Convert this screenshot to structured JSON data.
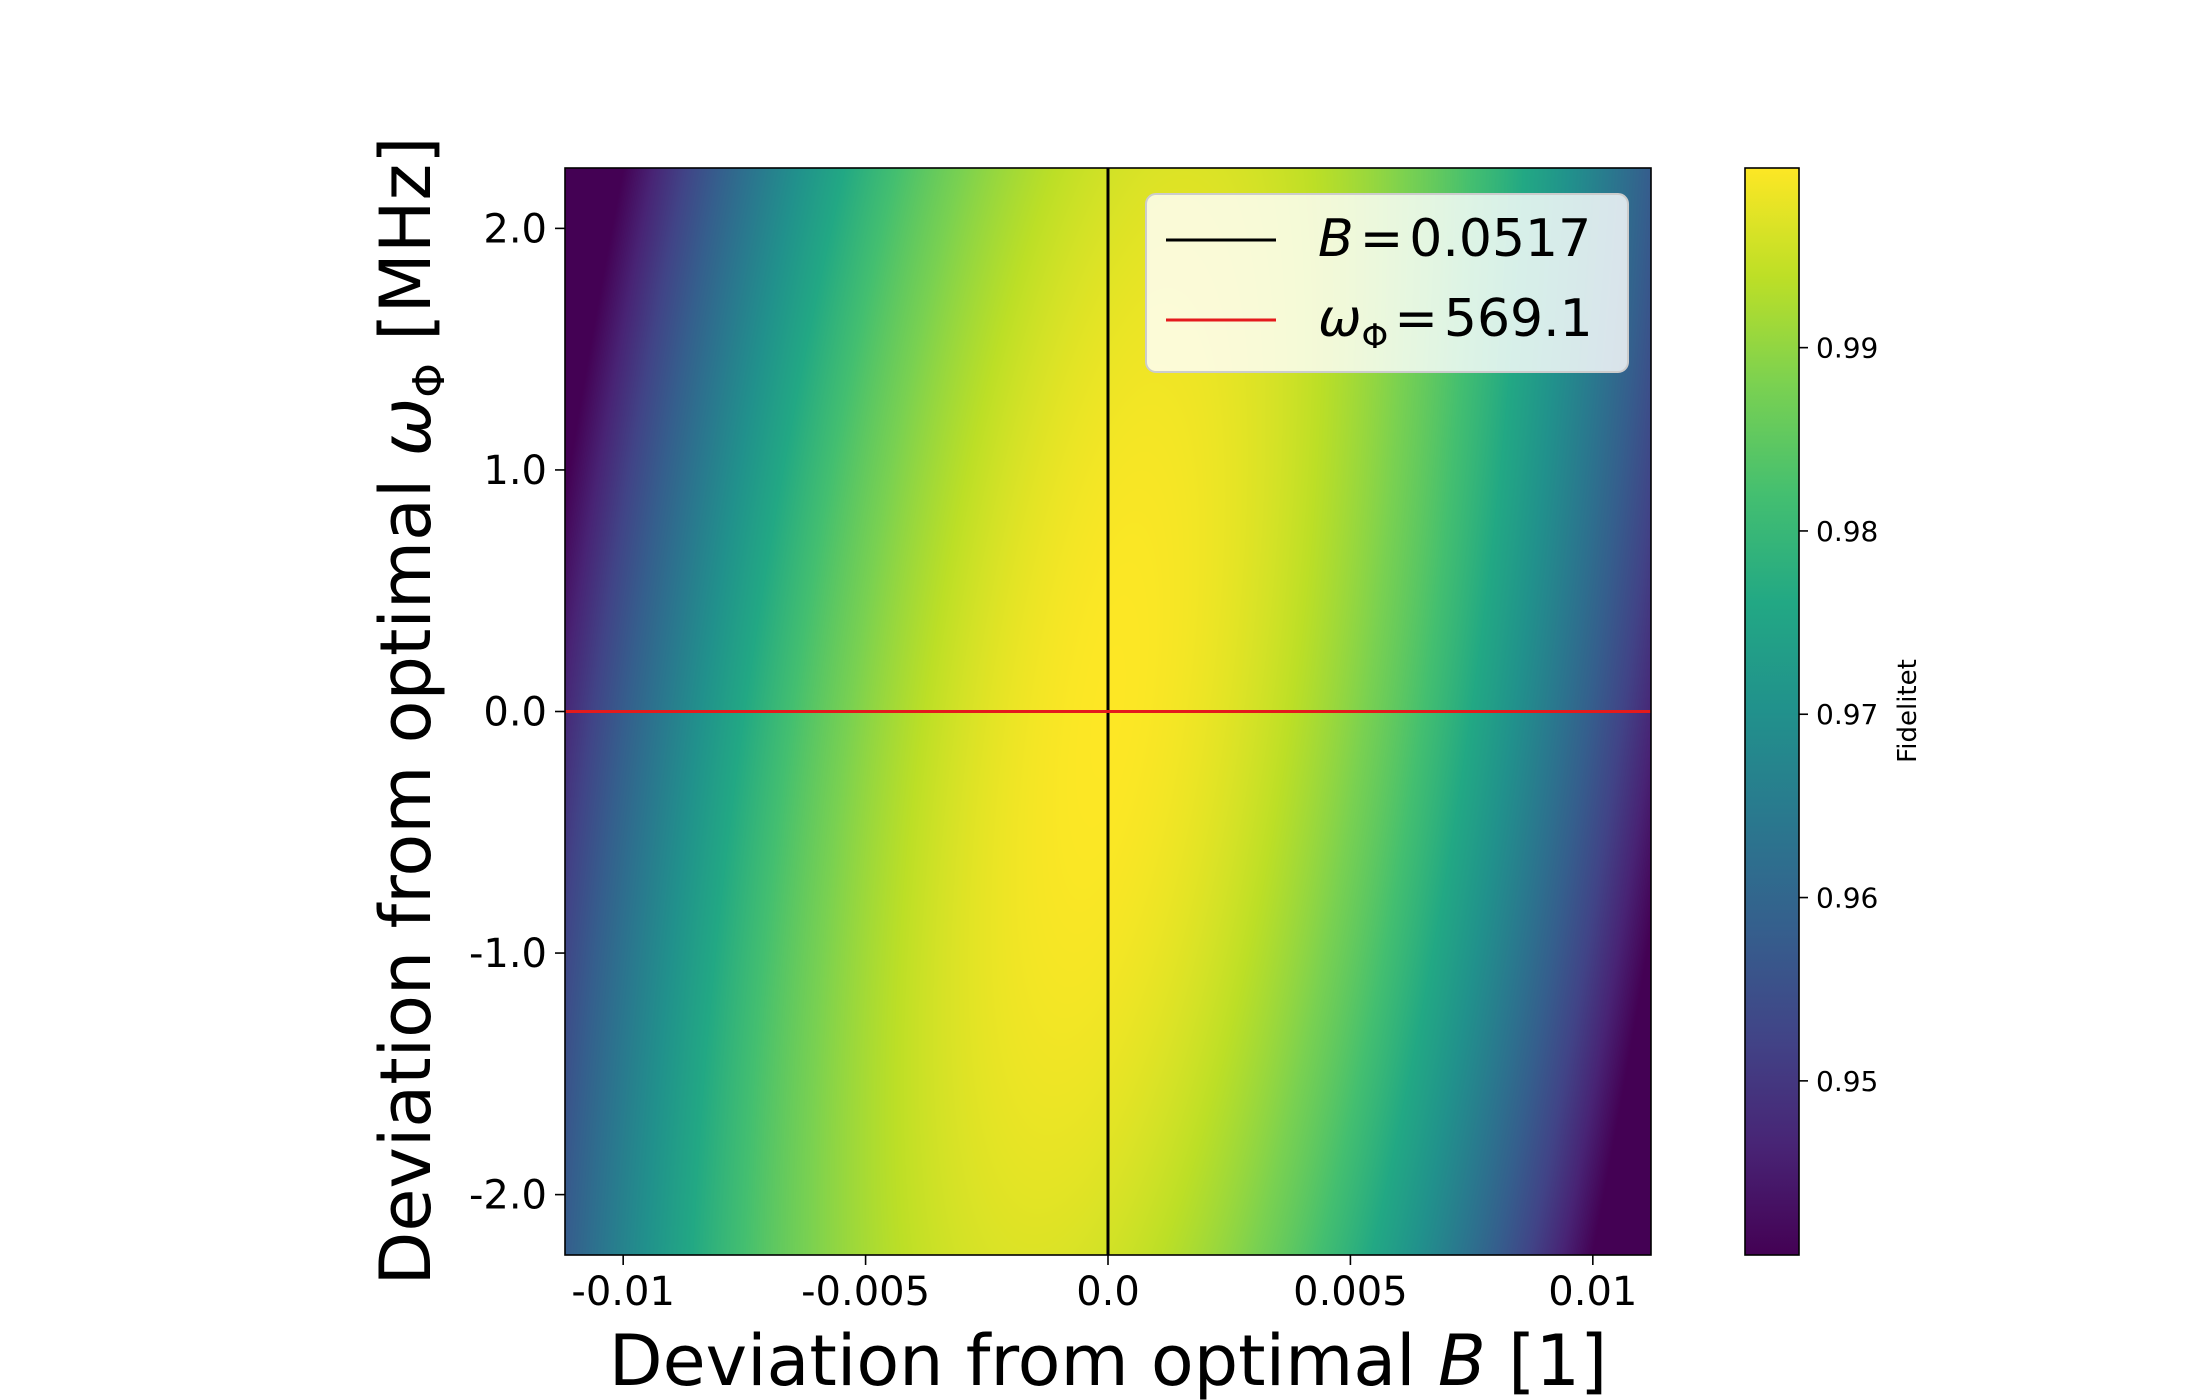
{
  "chart_data": {
    "type": "heatmap",
    "xlabel": {
      "pre": "Deviation from optimal ",
      "sym": "B",
      "post": " [1]"
    },
    "ylabel": {
      "pre": "Deviation from optimal ",
      "sym": "ω",
      "sub": "Φ",
      "post": " [MHz]"
    },
    "xlim": [
      -0.0112,
      0.0112
    ],
    "ylim": [
      -2.25,
      2.25
    ],
    "x_ticks": [
      -0.01,
      -0.005,
      0.0,
      0.005,
      0.01
    ],
    "x_tick_labels": [
      "-0.01",
      "-0.005",
      "0.0",
      "0.005",
      "0.01"
    ],
    "y_ticks": [
      2.0,
      1.0,
      0.0,
      -1.0,
      -2.0
    ],
    "y_tick_labels": [
      "2.0",
      "1.0",
      "0.0",
      "-1.0",
      "-2.0"
    ],
    "colorbar": {
      "label": "Fidelitet",
      "range": [
        0.9405,
        0.9998
      ],
      "ticks": [
        0.99,
        0.98,
        0.97,
        0.96,
        0.95
      ],
      "tick_labels": [
        "0.99",
        "0.98",
        "0.97",
        "0.96",
        "0.95"
      ],
      "colormap": "viridis"
    },
    "surface": {
      "description": "fidelity as a quadratic in (x, y): F = peak - a*(x - x0 + s*y)^2 - b*y^2",
      "peak": 0.9998,
      "x0": 0.0,
      "s": -0.0007,
      "a": 420,
      "b": 0.0006
    },
    "reference_lines": [
      {
        "name": "B",
        "value_text": "0.0517",
        "orientation": "vertical",
        "at": 0.0,
        "color": "#000000"
      },
      {
        "name": "ω",
        "sub": "Φ",
        "value_text": "569.1",
        "orientation": "horizontal",
        "at": 0.0,
        "color": "#e41a1c"
      }
    ],
    "legend": {
      "placement": "upper right"
    }
  }
}
